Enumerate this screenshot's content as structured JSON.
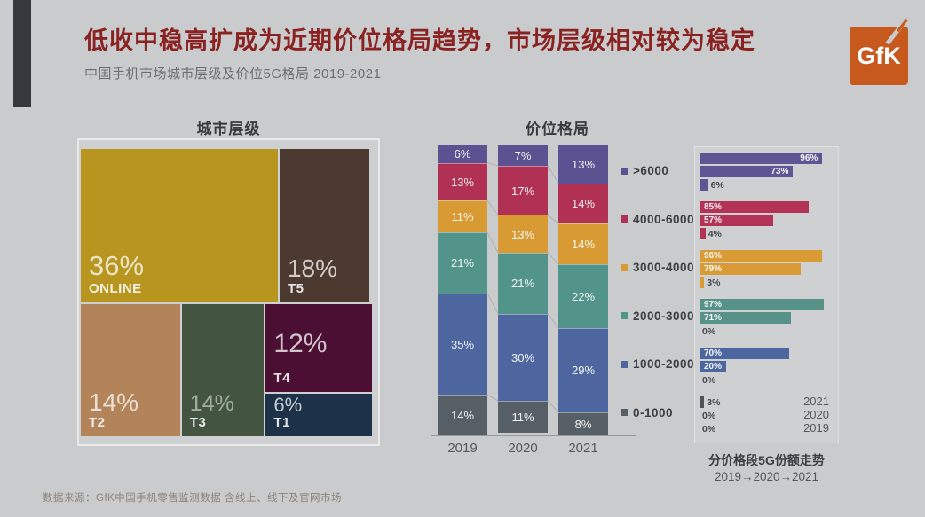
{
  "page": {
    "background": "#c9cbcd",
    "accent_bar_color": "#35393e"
  },
  "header": {
    "title": "低收中稳高扩成为近期价位格局趋势，市场层级相对较为稳定",
    "title_color": "#8b2222",
    "subtitle": "中国手机市场城市层级及价位5G格局 2019-2021",
    "logo_text": "GfK",
    "logo_color": "#c8591e"
  },
  "footer": {
    "source": "数据来源：GfK中国手机零售监测数据  含线上、线下及官网市场"
  },
  "chart_data": [
    {
      "type": "treemap",
      "title": "城市层级",
      "value_suffix": "%",
      "items": [
        {
          "label": "ONLINE",
          "value": 36,
          "color": "#b7951f"
        },
        {
          "label": "T5",
          "value": 18,
          "color": "#4c392f"
        },
        {
          "label": "T2",
          "value": 14,
          "color": "#b3835a"
        },
        {
          "label": "T3",
          "value": 14,
          "color": "#435541"
        },
        {
          "label": "T4",
          "value": 12,
          "color": "#4a0f33"
        },
        {
          "label": "T1",
          "value": 6,
          "color": "#1d3249"
        }
      ]
    },
    {
      "type": "bar",
      "stacked": true,
      "title": "价位格局",
      "categories": [
        "2019",
        "2020",
        "2021"
      ],
      "value_suffix": "%",
      "legend_position": "right",
      "ylim": [
        0,
        100
      ],
      "series": [
        {
          "name": ">6000",
          "color": "#5c5191",
          "values": [
            6,
            7,
            13
          ]
        },
        {
          "name": "4000-6000",
          "color": "#b03154",
          "values": [
            13,
            17,
            14
          ]
        },
        {
          "name": "3000-4000",
          "color": "#d89b33",
          "values": [
            11,
            13,
            14
          ]
        },
        {
          "name": "2000-3000",
          "color": "#52938a",
          "values": [
            21,
            21,
            22
          ]
        },
        {
          "name": "1000-2000",
          "color": "#4d66a0",
          "values": [
            35,
            30,
            29
          ]
        },
        {
          "name": "0-1000",
          "color": "#575f66",
          "values": [
            14,
            11,
            8
          ]
        }
      ]
    },
    {
      "type": "bar",
      "orientation": "horizontal",
      "title": "分价格段5G份额走势",
      "subtitle": "2019→2020→2021",
      "series_order": [
        "2021",
        "2020",
        "2019"
      ],
      "value_suffix": "%",
      "xlim": [
        0,
        105
      ],
      "groups": [
        {
          "name": ">6000",
          "color": "#5f5494",
          "label_align": "right",
          "values": [
            96,
            73,
            6
          ]
        },
        {
          "name": "4000-6000",
          "color": "#b23356",
          "label_align": "left",
          "values": [
            85,
            57,
            4
          ]
        },
        {
          "name": "3000-4000",
          "color": "#d99b35",
          "label_align": "left",
          "values": [
            96,
            79,
            3
          ]
        },
        {
          "name": "2000-3000",
          "color": "#579288",
          "label_align": "left",
          "values": [
            97,
            71,
            0
          ]
        },
        {
          "name": "1000-2000",
          "color": "#4d66a0",
          "label_align": "left",
          "values": [
            70,
            20,
            0
          ]
        },
        {
          "name": "0-1000",
          "color": "#4d5358",
          "label_align": "left",
          "values": [
            3,
            0,
            0
          ]
        }
      ]
    }
  ]
}
